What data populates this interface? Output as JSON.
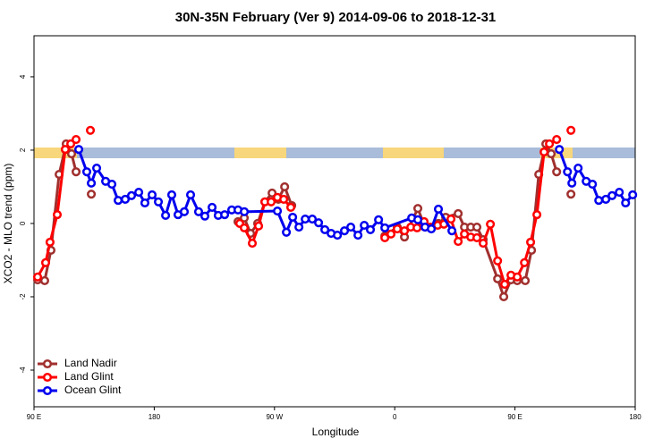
{
  "chart_data": {
    "type": "line",
    "title": "30N-35N February (Ver 9)   2014-09-06 to 2018-12-31",
    "xlabel": "Longitude",
    "ylabel": "XCO2 - MLO trend (ppm)",
    "xlim": [
      90,
      540
    ],
    "ylim": [
      -5,
      5.12
    ],
    "xticks": [
      {
        "value": 90,
        "label": "90 E"
      },
      180,
      {
        "value": 270,
        "label": "90 W"
      },
      {
        "value": 360,
        "label": "0"
      },
      {
        "value": 450,
        "label": "90 E"
      },
      {
        "value": 540,
        "label": "180"
      }
    ],
    "yticks": [
      4,
      2,
      0,
      -2,
      -4
    ],
    "legend": "bottom-left",
    "series": [
      {
        "name": "Land Nadir",
        "color": "#a0302e",
        "x": [
          92.7,
          98,
          102.7,
          108.8,
          114.1,
          118.1,
          121.5,
          null,
          132.9,
          null,
          242.7,
          247.4,
          252.1,
          257.4,
          262.8,
          268.2,
          272.9,
          277.6,
          282.9,
          null,
          352.6,
          361.9,
          367.3,
          377.3,
          382.7,
          392.7,
          398.1,
          407.5,
          412.2,
          416.9,
          421.5,
          426.2,
          437,
          441.6,
          447,
          451.7,
          457.7,
          462.4,
          467.8,
          473.1,
          477.1,
          481.2,
          null,
          491.9
        ],
        "values": [
          -1.54,
          -1.56,
          -0.73,
          1.34,
          2.17,
          1.9,
          1.41,
          null,
          0.8,
          null,
          0.05,
          0.15,
          -0.27,
          0,
          0.59,
          0.83,
          0.66,
          1,
          0.49,
          null,
          -0.34,
          -0.1,
          -0.37,
          0.41,
          -0.1,
          0,
          0.17,
          0.27,
          -0.1,
          -0.1,
          -0.1,
          -0.44,
          -1.51,
          -2,
          -1.54,
          -1.56,
          -1.56,
          -0.73,
          1.34,
          2.17,
          1.9,
          1.41,
          null,
          0.8
        ]
      },
      {
        "name": "Land Glint",
        "color": "#ff0000",
        "x": [
          92.7,
          98.7,
          102,
          107.4,
          113.4,
          117.5,
          121.5,
          null,
          132.2,
          null,
          244,
          247.4,
          253.4,
          258.1,
          262.8,
          267.5,
          272.2,
          276.9,
          282.2,
          null,
          352.6,
          357.2,
          361.9,
          367.3,
          372,
          376.7,
          382,
          386.7,
          392.1,
          396.8,
          402.1,
          407.5,
          412.2,
          416.9,
          421.5,
          426.2,
          431.6,
          437,
          442.3,
          447,
          451.7,
          457.1,
          461.7,
          466.4,
          471.8,
          475.8,
          481.2,
          null,
          491.9
        ],
        "values": [
          -1.46,
          -1.07,
          -0.51,
          0.24,
          2.02,
          2.17,
          2.29,
          null,
          2.54,
          null,
          0,
          -0.12,
          -0.54,
          -0.07,
          0.59,
          0.59,
          0.71,
          0.66,
          0.44,
          null,
          -0.39,
          -0.29,
          -0.15,
          -0.2,
          -0.1,
          -0.12,
          0.05,
          -0.1,
          -0.05,
          -0.02,
          0.12,
          -0.49,
          -0.29,
          -0.37,
          -0.39,
          -0.54,
          -0.02,
          -1.02,
          -1.66,
          -1.41,
          -1.46,
          -1.07,
          -0.51,
          0.24,
          1.95,
          2.17,
          2.29,
          null,
          2.54
        ]
      },
      {
        "name": "Ocean Glint",
        "color": "#0000ee",
        "x": [
          123.5,
          129.5,
          132.9,
          136.9,
          143.6,
          148.3,
          153,
          158.3,
          163,
          168.4,
          173,
          178.4,
          183.1,
          188.5,
          193.1,
          197.8,
          202.5,
          207.2,
          213.2,
          217.9,
          223.3,
          227.9,
          232.7,
          238,
          242.7,
          247.4,
          272.2,
          278.9,
          283.6,
          288.3,
          293,
          298.3,
          303,
          307.7,
          312.4,
          317.1,
          322.4,
          327.1,
          332.5,
          337.2,
          341.8,
          347.9,
          352.6,
          372.7,
          377.3,
          382.7,
          387.4,
          392.7,
          402.8,
          null,
          483.2,
          489.3,
          492.6,
          497.3,
          503.3,
          508,
          512.7,
          518,
          522.7,
          528.1,
          532.8,
          538.1
        ],
        "values": [
          2.02,
          1.41,
          1.1,
          1.51,
          1.15,
          1.07,
          0.63,
          0.66,
          0.76,
          0.85,
          0.56,
          0.78,
          0.59,
          0.22,
          0.78,
          0.24,
          0.32,
          0.78,
          0.32,
          0.2,
          0.44,
          0.22,
          0.24,
          0.37,
          0.37,
          0.32,
          0.34,
          -0.24,
          0.17,
          -0.1,
          0.12,
          0.12,
          0.02,
          -0.17,
          -0.27,
          -0.32,
          -0.2,
          -0.1,
          -0.32,
          -0.05,
          -0.17,
          0.1,
          -0.12,
          0.15,
          0.1,
          -0.1,
          -0.15,
          0.39,
          -0.2,
          null,
          2.02,
          1.41,
          1.1,
          1.51,
          1.15,
          1.07,
          0.63,
          0.66,
          0.76,
          0.85,
          0.56,
          0.78
        ]
      }
    ]
  }
}
